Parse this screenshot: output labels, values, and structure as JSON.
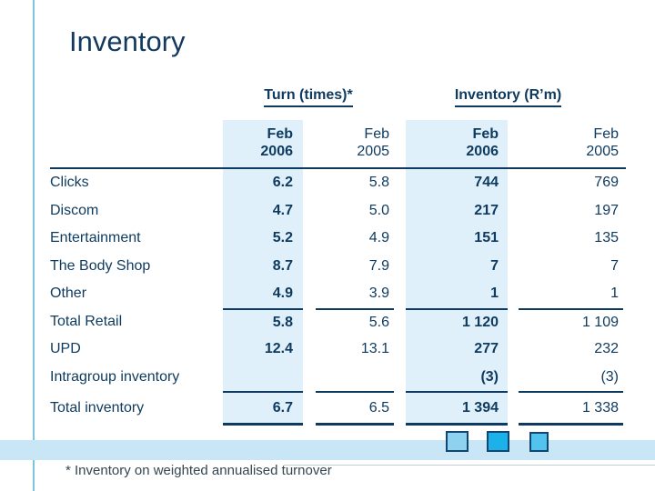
{
  "slide": {
    "title": "Inventory",
    "footnote": "* Inventory on weighted annualised turnover"
  },
  "table": {
    "groups": [
      {
        "label": "Turn (times)*"
      },
      {
        "label": "Inventory (R’m)"
      }
    ],
    "subheaders": {
      "turn_2006": {
        "month": "Feb",
        "year": "2006"
      },
      "turn_2005": {
        "month": "Feb",
        "year": "2005"
      },
      "inv_2006": {
        "month": "Feb",
        "year": "2006"
      },
      "inv_2005": {
        "month": "Feb",
        "year": "2005"
      }
    },
    "rows": [
      {
        "label": "Clicks",
        "turn_2006": "6.2",
        "turn_2005": "5.8",
        "inv_2006": "744",
        "inv_2005": "769"
      },
      {
        "label": "Discom",
        "turn_2006": "4.7",
        "turn_2005": "5.0",
        "inv_2006": "217",
        "inv_2005": "197"
      },
      {
        "label": "Entertainment",
        "turn_2006": "5.2",
        "turn_2005": "4.9",
        "inv_2006": "151",
        "inv_2005": "135"
      },
      {
        "label": "The Body Shop",
        "turn_2006": "8.7",
        "turn_2005": "7.9",
        "inv_2006": "7",
        "inv_2005": "7"
      },
      {
        "label": "Other",
        "turn_2006": "4.9",
        "turn_2005": "3.9",
        "inv_2006": "1",
        "inv_2005": "1"
      },
      {
        "label": "Total Retail",
        "turn_2006": "5.8",
        "turn_2005": "5.6",
        "inv_2006": "1 120",
        "inv_2005": "1 109"
      },
      {
        "label": "UPD",
        "turn_2006": "12.4",
        "turn_2005": "13.1",
        "inv_2006": "277",
        "inv_2005": "232"
      },
      {
        "label": "Intragroup inventory",
        "turn_2006": "",
        "turn_2005": "",
        "inv_2006": "(3)",
        "inv_2005": "(3)"
      },
      {
        "label": "Total inventory",
        "turn_2006": "6.7",
        "turn_2005": "6.5",
        "inv_2006": "1 394",
        "inv_2005": "1 338"
      }
    ]
  },
  "colors": {
    "text_navy": "#0d3a5e",
    "title_navy": "#14395f",
    "highlight_column": "#dff0fa",
    "bottom_band": "#c8e6f6",
    "left_rule": "#7cc5e0",
    "square_light": "#8ed2f0",
    "square_dark": "#1cb2e9",
    "square_mid": "#52c2ee",
    "footnote_text": "#35464f"
  }
}
